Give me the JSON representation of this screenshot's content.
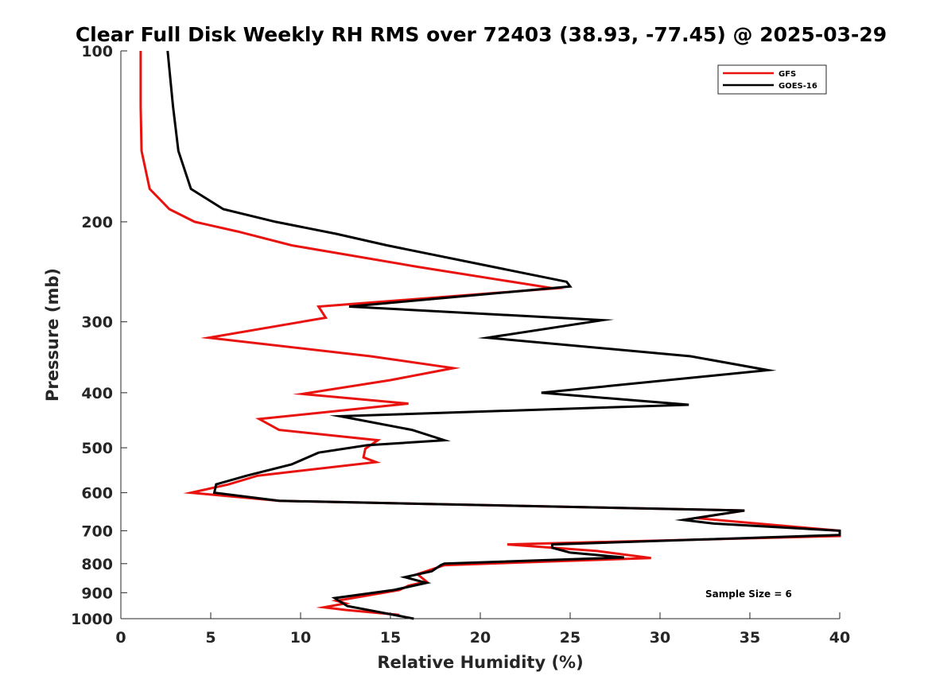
{
  "chart_data": {
    "type": "line",
    "title": "Clear Full Disk Weekly RH RMS over 72403 (38.93, -77.45) @ 2025-03-29",
    "xlabel": "Relative Humidity (%)",
    "ylabel": "Pressure (mb)",
    "xlim": [
      0,
      40
    ],
    "ylim": [
      100,
      1000
    ],
    "yscale": "log",
    "y_reversed": true,
    "grid": false,
    "legend_location": "top-right",
    "xticks": [
      0,
      5,
      10,
      15,
      20,
      25,
      30,
      35,
      40
    ],
    "yticks": [
      100,
      200,
      300,
      400,
      500,
      600,
      700,
      800,
      900,
      1000
    ],
    "annotation": "Sample Size = 6",
    "series": [
      {
        "name": "GFS",
        "color": "#e8120f",
        "points": [
          [
            1.1,
            100
          ],
          [
            1.1,
            125
          ],
          [
            1.15,
            150
          ],
          [
            1.6,
            175
          ],
          [
            2.7,
            190
          ],
          [
            4.1,
            200
          ],
          [
            6.5,
            208
          ],
          [
            9.5,
            220
          ],
          [
            16.5,
            240
          ],
          [
            24.1,
            262
          ],
          [
            11.0,
            282
          ],
          [
            11.4,
            295
          ],
          [
            4.9,
            320
          ],
          [
            13.9,
            345
          ],
          [
            18.5,
            362
          ],
          [
            15.0,
            380
          ],
          [
            10.1,
            402
          ],
          [
            16.0,
            418
          ],
          [
            7.7,
            445
          ],
          [
            8.8,
            465
          ],
          [
            14.3,
            485
          ],
          [
            13.6,
            502
          ],
          [
            13.5,
            520
          ],
          [
            14.2,
            530
          ],
          [
            7.6,
            560
          ],
          [
            6.0,
            580
          ],
          [
            3.9,
            600
          ],
          [
            8.8,
            620
          ],
          [
            34.7,
            645
          ],
          [
            32.0,
            665
          ],
          [
            40.0,
            700
          ],
          [
            40.0,
            715
          ],
          [
            21.5,
            740
          ],
          [
            26.5,
            760
          ],
          [
            29.5,
            782
          ],
          [
            18.0,
            805
          ],
          [
            16.5,
            835
          ],
          [
            17.0,
            860
          ],
          [
            16.0,
            875
          ],
          [
            15.5,
            890
          ],
          [
            12.0,
            930
          ],
          [
            12.5,
            940
          ],
          [
            11.3,
            955
          ],
          [
            12.5,
            965
          ],
          [
            15.5,
            985
          ]
        ]
      },
      {
        "name": "GOES-16",
        "color": "#000000",
        "points": [
          [
            2.6,
            100
          ],
          [
            2.9,
            125
          ],
          [
            3.2,
            150
          ],
          [
            3.9,
            175
          ],
          [
            5.7,
            190
          ],
          [
            8.6,
            200
          ],
          [
            12.0,
            210
          ],
          [
            14.8,
            220
          ],
          [
            24.8,
            255
          ],
          [
            25.0,
            260
          ],
          [
            12.7,
            282
          ],
          [
            26.8,
            298
          ],
          [
            20.4,
            320
          ],
          [
            31.7,
            345
          ],
          [
            36.0,
            365
          ],
          [
            23.4,
            400
          ],
          [
            31.6,
            420
          ],
          [
            12.2,
            440
          ],
          [
            16.2,
            465
          ],
          [
            18.0,
            485
          ],
          [
            13.7,
            495
          ],
          [
            11.0,
            510
          ],
          [
            9.5,
            535
          ],
          [
            7.0,
            560
          ],
          [
            5.3,
            580
          ],
          [
            5.2,
            600
          ],
          [
            8.8,
            620
          ],
          [
            34.7,
            645
          ],
          [
            31.3,
            670
          ],
          [
            33.0,
            680
          ],
          [
            40.0,
            700
          ],
          [
            40.0,
            712
          ],
          [
            24.0,
            740
          ],
          [
            24.0,
            750
          ],
          [
            25.0,
            765
          ],
          [
            28.0,
            780
          ],
          [
            18.0,
            800
          ],
          [
            17.8,
            805
          ],
          [
            17.3,
            825
          ],
          [
            15.8,
            845
          ],
          [
            17.0,
            865
          ],
          [
            15.2,
            890
          ],
          [
            11.9,
            920
          ],
          [
            12.6,
            950
          ],
          [
            16.3,
            1000
          ]
        ]
      }
    ]
  }
}
